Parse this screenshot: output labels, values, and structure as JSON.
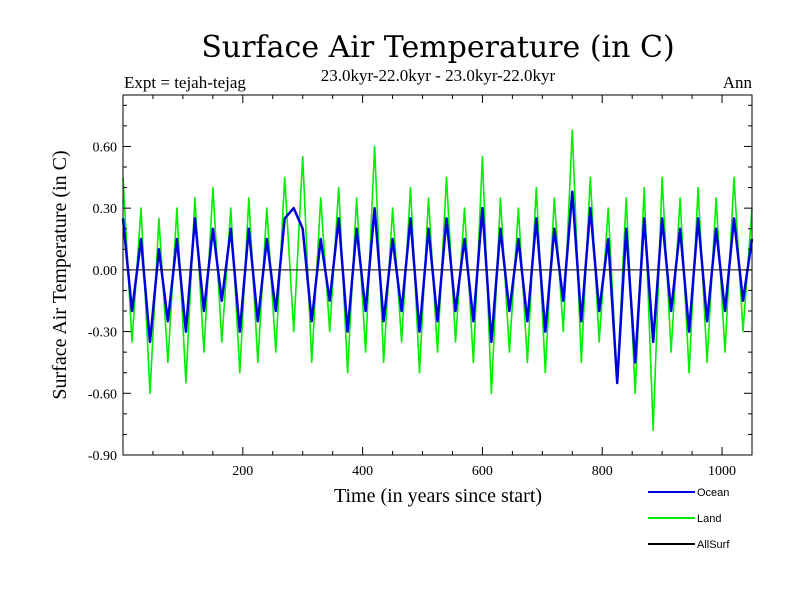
{
  "header": {
    "title": "Surface Air Temperature (in C)",
    "left": "Expt = tejah-tejag",
    "center": "23.0kyr-22.0kyr - 23.0kyr-22.0kyr",
    "right": "Ann"
  },
  "chart_data": {
    "type": "line",
    "title": "Surface Air Temperature (in C)",
    "xlabel": "Time (in years since start)",
    "ylabel": "Surface Air Temperature (in C)",
    "xlim": [
      0,
      1050
    ],
    "ylim": [
      -0.9,
      0.85
    ],
    "xticks": [
      200,
      400,
      600,
      800,
      1000
    ],
    "xtick_labels": [
      "200",
      "400",
      "600",
      "800",
      "1000"
    ],
    "yticks": [
      -0.9,
      -0.6,
      -0.3,
      0.0,
      0.3,
      0.6
    ],
    "ytick_labels": [
      "-0.90",
      "-0.60",
      "-0.30",
      "0.00",
      "0.30",
      "0.60"
    ],
    "series": [
      {
        "name": "Land",
        "color": "#00ee00",
        "x": [
          0,
          15,
          30,
          45,
          60,
          75,
          90,
          105,
          120,
          135,
          150,
          165,
          180,
          195,
          210,
          225,
          240,
          255,
          270,
          285,
          300,
          315,
          330,
          345,
          360,
          375,
          390,
          405,
          420,
          435,
          450,
          465,
          480,
          495,
          510,
          525,
          540,
          555,
          570,
          585,
          600,
          615,
          630,
          645,
          660,
          675,
          690,
          705,
          720,
          735,
          750,
          765,
          780,
          795,
          810,
          825,
          840,
          855,
          870,
          885,
          900,
          915,
          930,
          945,
          960,
          975,
          990,
          1005,
          1020,
          1035,
          1050
        ],
        "values": [
          0.45,
          -0.35,
          0.3,
          -0.6,
          0.25,
          -0.45,
          0.3,
          -0.55,
          0.35,
          -0.4,
          0.4,
          -0.35,
          0.3,
          -0.5,
          0.35,
          -0.45,
          0.3,
          -0.4,
          0.45,
          -0.3,
          0.55,
          -0.45,
          0.35,
          -0.3,
          0.4,
          -0.5,
          0.35,
          -0.4,
          0.6,
          -0.45,
          0.3,
          -0.35,
          0.4,
          -0.5,
          0.35,
          -0.4,
          0.45,
          -0.35,
          0.3,
          -0.45,
          0.55,
          -0.6,
          0.35,
          -0.4,
          0.3,
          -0.45,
          0.4,
          -0.5,
          0.35,
          -0.3,
          0.68,
          -0.45,
          0.45,
          -0.35,
          0.3,
          -0.55,
          0.35,
          -0.6,
          0.4,
          -0.78,
          0.45,
          -0.4,
          0.35,
          -0.5,
          0.4,
          -0.45,
          0.35,
          -0.4,
          0.45,
          -0.3,
          0.3
        ]
      },
      {
        "name": "Ocean",
        "color": "#0000dd",
        "x": [
          0,
          15,
          30,
          45,
          60,
          75,
          90,
          105,
          120,
          135,
          150,
          165,
          180,
          195,
          210,
          225,
          240,
          255,
          270,
          285,
          300,
          315,
          330,
          345,
          360,
          375,
          390,
          405,
          420,
          435,
          450,
          465,
          480,
          495,
          510,
          525,
          540,
          555,
          570,
          585,
          600,
          615,
          630,
          645,
          660,
          675,
          690,
          705,
          720,
          735,
          750,
          765,
          780,
          795,
          810,
          825,
          840,
          855,
          870,
          885,
          900,
          915,
          930,
          945,
          960,
          975,
          990,
          1005,
          1020,
          1035,
          1050
        ],
        "values": [
          0.25,
          -0.2,
          0.15,
          -0.35,
          0.1,
          -0.25,
          0.15,
          -0.3,
          0.25,
          -0.2,
          0.2,
          -0.15,
          0.2,
          -0.3,
          0.2,
          -0.25,
          0.15,
          -0.2,
          0.25,
          0.3,
          0.2,
          -0.25,
          0.15,
          -0.15,
          0.25,
          -0.3,
          0.2,
          -0.2,
          0.3,
          -0.25,
          0.15,
          -0.2,
          0.25,
          -0.3,
          0.2,
          -0.25,
          0.25,
          -0.2,
          0.15,
          -0.25,
          0.3,
          -0.35,
          0.2,
          -0.2,
          0.15,
          -0.25,
          0.25,
          -0.3,
          0.2,
          -0.15,
          0.38,
          -0.25,
          0.3,
          -0.2,
          0.15,
          -0.55,
          0.2,
          -0.45,
          0.25,
          -0.35,
          0.25,
          -0.2,
          0.2,
          -0.3,
          0.25,
          -0.25,
          0.2,
          -0.2,
          0.25,
          -0.15,
          0.15
        ]
      },
      {
        "name": "AllSurf",
        "color": "#000000",
        "x": [],
        "values": []
      }
    ],
    "legend": [
      "Ocean",
      "Land",
      "AllSurf"
    ],
    "legend_placement": "bottom-right"
  }
}
